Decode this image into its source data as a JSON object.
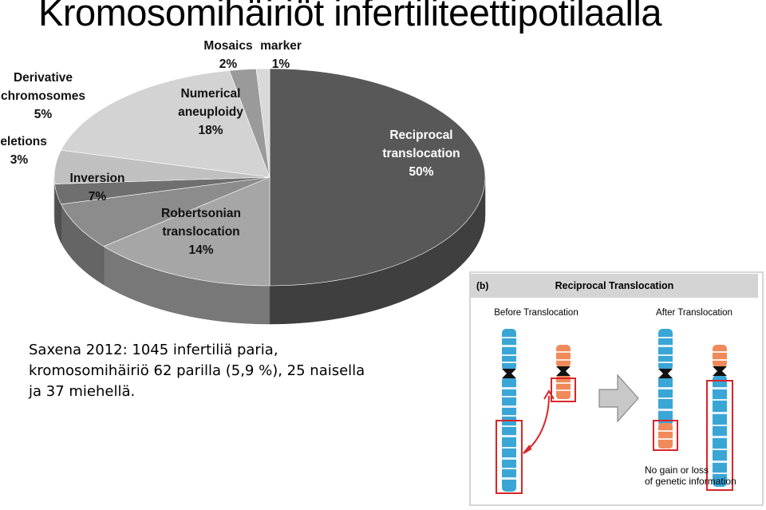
{
  "title": "Kromosomihäiriöt infertiliteettipotilaalla",
  "chart_data": {
    "type": "pie",
    "title": "",
    "slices": [
      {
        "label_lines": [
          "Reciprocal",
          "translocation"
        ],
        "label": "Reciprocal translocation",
        "value": 50,
        "value_label": "50%",
        "color": "#585858"
      },
      {
        "label_lines": [
          "Robertsonian",
          "translocation"
        ],
        "label": "Robertsonian translocation",
        "value": 14,
        "value_label": "14%",
        "color": "#a6a6a6"
      },
      {
        "label_lines": [
          "Inversion"
        ],
        "label": "Inversion",
        "value": 7,
        "value_label": "7%",
        "color": "#8c8c8c"
      },
      {
        "label_lines": [
          "Deletions"
        ],
        "label": "Deletions",
        "value": 3,
        "value_label": "3%",
        "color": "#6f6f6f"
      },
      {
        "label_lines": [
          "Derivative",
          "chromosomes"
        ],
        "label": "Derivative chromosomes",
        "value": 5,
        "value_label": "5%",
        "color": "#c0c0c0"
      },
      {
        "label_lines": [
          "Numerical",
          "aneuploidy"
        ],
        "label": "Numerical aneuploidy",
        "value": 18,
        "value_label": "18%",
        "color": "#d3d3d3"
      },
      {
        "label_lines": [
          "Mosaics"
        ],
        "label": "Mosaics",
        "value": 2,
        "value_label": "2%",
        "color": "#9a9a9a"
      },
      {
        "label_lines": [
          "marker"
        ],
        "label": "marker",
        "value": 1,
        "value_label": "1%",
        "color": "#d9d9d9"
      }
    ]
  },
  "caption": {
    "line1": "Saxena 2012: 1045 infertiliä paria,",
    "line2": "kromosomihäiriö 62 parilla (5,9 %), 25 naisella",
    "line3": "ja 37 miehellä."
  },
  "figure": {
    "panel_letter": "(b)",
    "heading": "Reciprocal Translocation",
    "before_label": "Before Translocation",
    "after_label": "After Translocation",
    "note_line1": "No gain or loss",
    "note_line2": "of genetic information",
    "colors": {
      "blue": "#3aa6d6",
      "orange": "#f08a5a",
      "red": "#d9252a",
      "header_bg": "#d4d4d4"
    }
  }
}
